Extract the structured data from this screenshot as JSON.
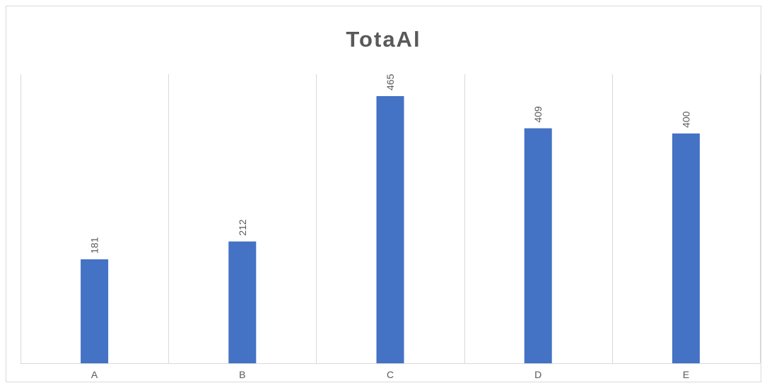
{
  "chart_data": {
    "type": "bar",
    "title": "TotaAl",
    "categories": [
      "A",
      "B",
      "C",
      "D",
      "E"
    ],
    "values": [
      181,
      212,
      465,
      409,
      400
    ],
    "xlabel": "",
    "ylabel": "",
    "ylim": [
      0,
      500
    ],
    "grid": "vertical",
    "legend": "none",
    "data_labels": "rotated-above-bars",
    "bar_color": "#4472c4",
    "gridline_color": "#d9d9d9",
    "text_color": "#595959"
  }
}
